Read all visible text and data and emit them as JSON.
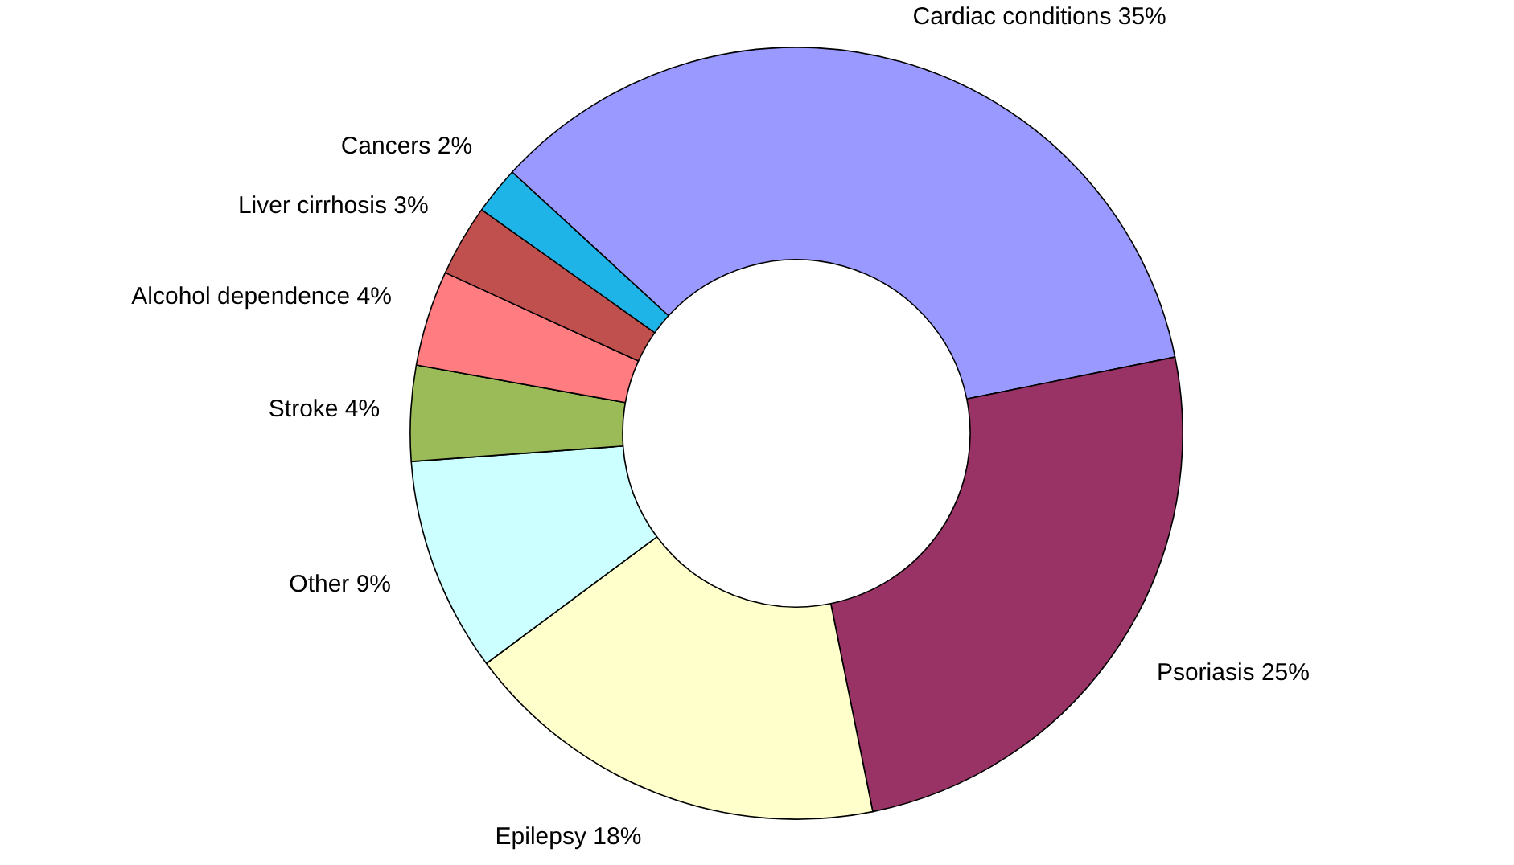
{
  "chart_data": {
    "type": "donut",
    "categories": [
      "Cardiac conditions 35%",
      "Psoriasis 25%",
      "Epilepsy 18%",
      "Other 9%",
      "Stroke 4%",
      "Alcohol dependence  4%",
      "Liver  cirrhosis 3%",
      "Cancers 2%"
    ],
    "values": [
      35,
      25,
      18,
      9,
      4,
      4,
      3,
      2
    ],
    "colors": [
      "#9999ff",
      "#993366",
      "#ffffcc",
      "#ccffff",
      "#9bbb59",
      "#ff7c80",
      "#c0504d",
      "#1fb4e8"
    ]
  }
}
